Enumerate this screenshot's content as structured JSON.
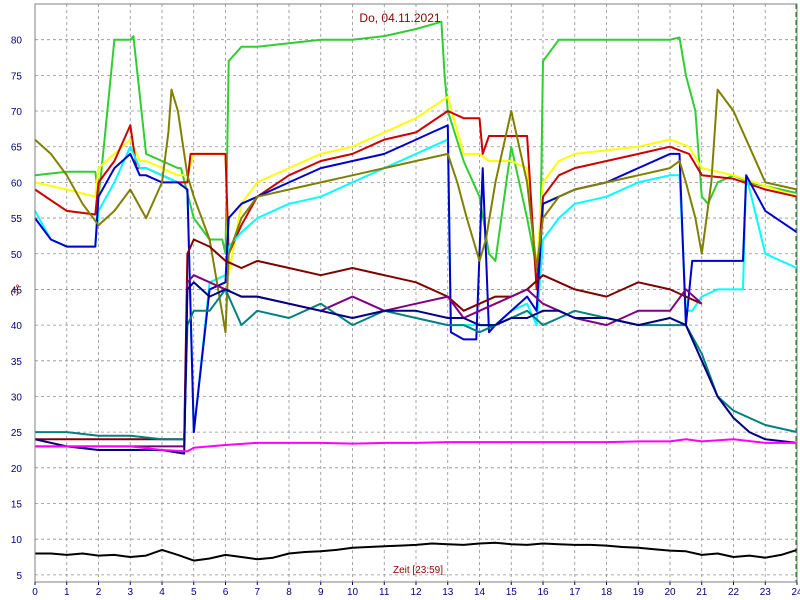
{
  "chart_data": {
    "type": "line",
    "title": "Do, 04.11.2021",
    "xlabel": "Zeit [23:59]",
    "ylabel": "°C",
    "xlim": [
      0,
      24
    ],
    "ylim": [
      4,
      85
    ],
    "x_ticks": [
      "0",
      "1",
      "2",
      "3",
      "4",
      "5",
      "6",
      "7",
      "8",
      "9",
      "10",
      "11",
      "12",
      "13",
      "14",
      "15",
      "16",
      "17",
      "18",
      "19",
      "20",
      "21",
      "22",
      "23",
      "24"
    ],
    "y_ticks": [
      "5",
      "10",
      "15",
      "20",
      "25",
      "30",
      "35",
      "40",
      "45",
      "50",
      "55",
      "60",
      "65",
      "70",
      "75",
      "80"
    ],
    "grid": true,
    "legend": "none",
    "colors": {
      "background": "#ffffff",
      "plot_border": "#808080",
      "grid": "#909090",
      "title": "#8b0000",
      "ticks": "#000080",
      "end_line": "#008000"
    },
    "series": [
      {
        "color": "#32cd32",
        "x": [
          0,
          1,
          1.9,
          2,
          2.1,
          2.5,
          3,
          3.1,
          3.5,
          4,
          4.5,
          4.6,
          5,
          5.5,
          5.9,
          6,
          6.1,
          6.5,
          7,
          8,
          9,
          10,
          11,
          12,
          12.8,
          12.9,
          13,
          13.5,
          14,
          14.3,
          14.5,
          15,
          15.5,
          15.8,
          15.9,
          16,
          16.5,
          17,
          18,
          19,
          20,
          20.3,
          20.5,
          20.8,
          21,
          21.2,
          21.5,
          22,
          22.5,
          23,
          24
        ],
        "y": [
          61,
          61.5,
          61.5,
          58,
          62,
          80,
          80,
          80.5,
          64,
          63,
          62,
          62,
          55,
          52,
          52,
          50,
          77,
          79,
          79,
          79.5,
          80,
          80,
          80.5,
          81.5,
          82.5,
          75,
          70,
          63,
          58,
          50,
          49,
          65,
          55,
          48,
          47,
          77,
          80,
          80,
          80,
          80,
          80,
          80.3,
          75,
          70,
          58,
          57,
          60,
          61,
          60,
          59.5,
          58.5
        ]
      },
      {
        "color": "#ffff00",
        "x": [
          0,
          1,
          1.9,
          2,
          2.5,
          3,
          3.3,
          3.5,
          4,
          4.5,
          4.8,
          5,
          5.5,
          6,
          6.1,
          6.5,
          7,
          8,
          9,
          10,
          11,
          12,
          13,
          13.5,
          14,
          14.3,
          14.5,
          15,
          15.5,
          15.8,
          16,
          16.5,
          17,
          18,
          19,
          20,
          20.3,
          20.6,
          21,
          22,
          23,
          24
        ],
        "y": [
          60,
          59,
          58,
          62,
          64,
          66,
          63,
          63,
          62,
          61,
          61,
          64,
          64,
          64,
          47,
          57,
          60,
          62,
          64,
          65,
          67,
          69,
          72,
          64,
          64,
          63,
          63,
          63,
          62,
          48,
          60,
          63,
          64,
          64.5,
          65,
          66,
          65.5,
          65,
          62,
          61,
          59.5,
          58
        ]
      },
      {
        "color": "#cc0000",
        "x": [
          0,
          1,
          1.9,
          2,
          2.5,
          3,
          3.2,
          3.5,
          4,
          4.5,
          4.8,
          4.9,
          5.5,
          6,
          6.1,
          6.5,
          7,
          8,
          9,
          10,
          11,
          12,
          13,
          13.5,
          14,
          14.1,
          14.3,
          14.5,
          15,
          15.5,
          15.8,
          16,
          16.5,
          17,
          18,
          19,
          20,
          20.3,
          20.6,
          21,
          22,
          23,
          24
        ],
        "y": [
          59,
          56,
          55.5,
          60,
          63,
          68,
          62,
          62,
          61,
          60,
          60,
          64,
          64,
          64,
          50,
          54,
          58,
          61,
          63,
          64,
          66,
          67,
          70,
          69,
          69,
          64,
          66.5,
          66.5,
          66.5,
          66.5,
          45,
          58,
          61,
          62,
          63,
          64,
          65,
          64.5,
          64,
          61,
          60.5,
          59,
          58
        ]
      },
      {
        "color": "#00ffff",
        "x": [
          0,
          0.5,
          1,
          1.9,
          2,
          2.5,
          3,
          3.3,
          3.5,
          4,
          4.5,
          4.8,
          5,
          5.5,
          6,
          6.1,
          6.5,
          7,
          8,
          9,
          10,
          11,
          12,
          12.5,
          13,
          13.1,
          13.5,
          14,
          14.5,
          15,
          15.5,
          15.8,
          16,
          16.5,
          17,
          18,
          19,
          20,
          20.3,
          20.5,
          20.7,
          21,
          21.5,
          22,
          22.3,
          22.4,
          23,
          24
        ],
        "y": [
          56,
          52,
          51,
          51,
          56,
          60,
          65,
          62,
          62,
          61,
          60,
          59,
          25,
          46,
          47,
          51,
          53,
          55,
          57,
          58,
          60,
          62,
          64,
          65,
          66,
          40,
          40,
          40,
          40,
          42,
          43,
          40,
          52,
          55,
          57,
          58,
          60,
          61,
          61,
          42,
          42,
          44,
          45,
          45,
          45,
          61,
          50,
          48
        ]
      },
      {
        "color": "#0000cc",
        "x": [
          0,
          0.5,
          1,
          1.9,
          2,
          2.5,
          3,
          3.3,
          3.5,
          4,
          4.5,
          4.8,
          5,
          5.5,
          6,
          6.1,
          6.5,
          7,
          8,
          9,
          10,
          11,
          12,
          12.5,
          13,
          13.1,
          13.5,
          13.9,
          14.1,
          14.3,
          14.5,
          15,
          15.5,
          15.8,
          16,
          16.5,
          17,
          18,
          19,
          20,
          20.3,
          20.5,
          20.7,
          21,
          21.5,
          22,
          22.3,
          22.4,
          23,
          24
        ],
        "y": [
          55,
          52,
          51,
          51,
          58,
          62,
          64,
          61,
          61,
          60,
          60,
          59,
          25,
          45,
          46,
          55,
          57,
          58,
          60,
          62,
          63,
          64,
          66,
          67,
          68,
          39,
          38,
          38,
          62,
          39,
          40,
          42,
          44,
          42,
          57,
          58,
          59,
          60,
          62,
          64,
          64,
          40,
          49,
          49,
          49,
          49,
          49,
          61,
          56,
          53
        ]
      },
      {
        "color": "#808000",
        "x": [
          0,
          0.5,
          1,
          1.5,
          2,
          2.5,
          3,
          3.5,
          4,
          4.2,
          4.3,
          4.5,
          4.8,
          5,
          5.5,
          6,
          6.1,
          6.5,
          7,
          8,
          9,
          10,
          11,
          12,
          13,
          13.3,
          13.6,
          14,
          14.2,
          14.5,
          15,
          15.5,
          15.8,
          16,
          16.5,
          17,
          18,
          19,
          20,
          20.3,
          20.5,
          20.8,
          21,
          21.3,
          21.5,
          22,
          22.5,
          23,
          24
        ],
        "y": [
          66,
          64,
          61,
          57,
          54,
          56,
          59,
          55,
          60,
          67,
          73,
          70,
          61,
          58,
          52,
          39,
          50,
          55,
          58,
          59,
          60,
          61,
          62,
          63,
          64,
          60,
          55,
          49,
          52,
          60,
          70,
          60,
          48,
          55,
          58,
          59,
          60,
          61,
          62,
          63,
          60,
          55,
          50,
          60,
          73,
          70,
          65,
          60,
          59
        ]
      },
      {
        "color": "#800000",
        "x": [
          0,
          1,
          2,
          3,
          4,
          4.7,
          4.8,
          5,
          5.5,
          6,
          6.5,
          7,
          8,
          9,
          10,
          11,
          12,
          13,
          13.5,
          14,
          14.5,
          15,
          15.5,
          16,
          16.5,
          17,
          18,
          19,
          20,
          20.5,
          21
        ],
        "y": [
          24,
          24,
          24,
          24,
          24,
          24,
          50,
          52,
          51,
          49,
          48,
          49,
          48,
          47,
          48,
          47,
          46,
          44,
          42,
          43,
          44,
          44,
          45,
          47,
          46,
          45,
          44,
          46,
          45,
          44,
          43
        ]
      },
      {
        "color": "#800080",
        "x": [
          0,
          1,
          2,
          3,
          4,
          4.7,
          4.8,
          5,
          5.5,
          6,
          6.5,
          7,
          8,
          9,
          10,
          11,
          12,
          13,
          13.5,
          14,
          14.5,
          15,
          15.5,
          16,
          16.5,
          17,
          18,
          19,
          20,
          20.5,
          21
        ],
        "y": [
          23,
          23,
          23,
          23,
          23,
          23,
          46,
          47,
          46,
          45,
          44,
          44,
          43,
          42,
          44,
          42,
          43,
          44,
          41,
          42,
          43,
          44,
          45,
          43,
          42,
          41,
          40,
          42,
          42,
          45,
          43
        ]
      },
      {
        "color": "#008080",
        "x": [
          0,
          1,
          2,
          3,
          4,
          4.7,
          4.8,
          5,
          5.5,
          6,
          6.5,
          7,
          8,
          9,
          10,
          11,
          12,
          13,
          13.5,
          14,
          14.5,
          15,
          15.5,
          16,
          16.5,
          17,
          18,
          19,
          20,
          20.5,
          21,
          21.5,
          22,
          22.5,
          23,
          24
        ],
        "y": [
          25,
          25,
          24.5,
          24.5,
          24,
          24,
          40,
          42,
          42,
          45,
          40,
          42,
          41,
          43,
          40,
          42,
          41,
          40,
          40,
          39,
          40,
          41,
          42,
          40,
          41,
          42,
          41,
          40,
          40,
          40,
          36,
          30,
          28,
          27,
          26,
          25
        ]
      },
      {
        "color": "#000080",
        "x": [
          0,
          1,
          2,
          3,
          4,
          4.7,
          4.8,
          5,
          5.5,
          6,
          6.5,
          7,
          8,
          9,
          10,
          11,
          12,
          13,
          13.5,
          14,
          14.5,
          15,
          15.5,
          16,
          16.5,
          17,
          18,
          19,
          20,
          20.5,
          21,
          21.5,
          22,
          22.5,
          23,
          24
        ],
        "y": [
          24,
          23,
          22.5,
          22.5,
          22.5,
          22,
          45,
          46,
          44,
          45,
          44,
          44,
          43,
          42,
          41,
          42,
          42,
          41,
          41,
          40,
          40,
          41,
          41,
          42,
          42,
          41,
          41,
          40,
          41,
          40,
          35,
          30,
          27,
          25,
          24,
          23.5
        ]
      },
      {
        "color": "#ff00ff",
        "x": [
          0,
          1,
          2,
          3,
          4,
          4.8,
          5,
          5.5,
          6,
          7,
          8,
          9,
          10,
          11,
          12,
          13,
          14,
          15,
          16,
          17,
          18,
          19,
          20,
          20.5,
          21,
          22,
          23,
          24
        ],
        "y": [
          23,
          23,
          23,
          23,
          22.5,
          22.3,
          22.8,
          23,
          23.2,
          23.5,
          23.5,
          23.5,
          23.4,
          23.5,
          23.5,
          23.6,
          23.6,
          23.6,
          23.6,
          23.6,
          23.6,
          23.7,
          23.7,
          24,
          23.7,
          24,
          23.5,
          23.5
        ]
      },
      {
        "color": "#000000",
        "x": [
          0,
          0.5,
          1,
          1.5,
          2,
          2.5,
          3,
          3.5,
          4,
          4.5,
          5,
          5.5,
          6,
          6.5,
          7,
          7.5,
          8,
          8.5,
          9,
          9.5,
          10,
          10.5,
          11,
          11.5,
          12,
          12.5,
          13,
          13.5,
          14,
          14.5,
          15,
          15.5,
          16,
          16.5,
          17,
          17.5,
          18,
          18.5,
          19,
          19.5,
          20,
          20.5,
          21,
          21.5,
          22,
          22.5,
          23,
          23.5,
          24
        ],
        "y": [
          8,
          8,
          7.8,
          8,
          7.7,
          7.8,
          7.5,
          7.7,
          8.5,
          7.8,
          7,
          7.3,
          7.8,
          7.5,
          7.2,
          7.4,
          8,
          8.2,
          8.3,
          8.5,
          8.8,
          8.9,
          9,
          9.1,
          9.2,
          9.4,
          9.3,
          9.2,
          9.4,
          9.5,
          9.3,
          9.2,
          9.4,
          9.3,
          9.2,
          9.2,
          9.1,
          8.9,
          8.8,
          8.6,
          8.4,
          8.3,
          7.8,
          8,
          7.5,
          7.7,
          7.4,
          7.8,
          8.5
        ]
      }
    ]
  }
}
